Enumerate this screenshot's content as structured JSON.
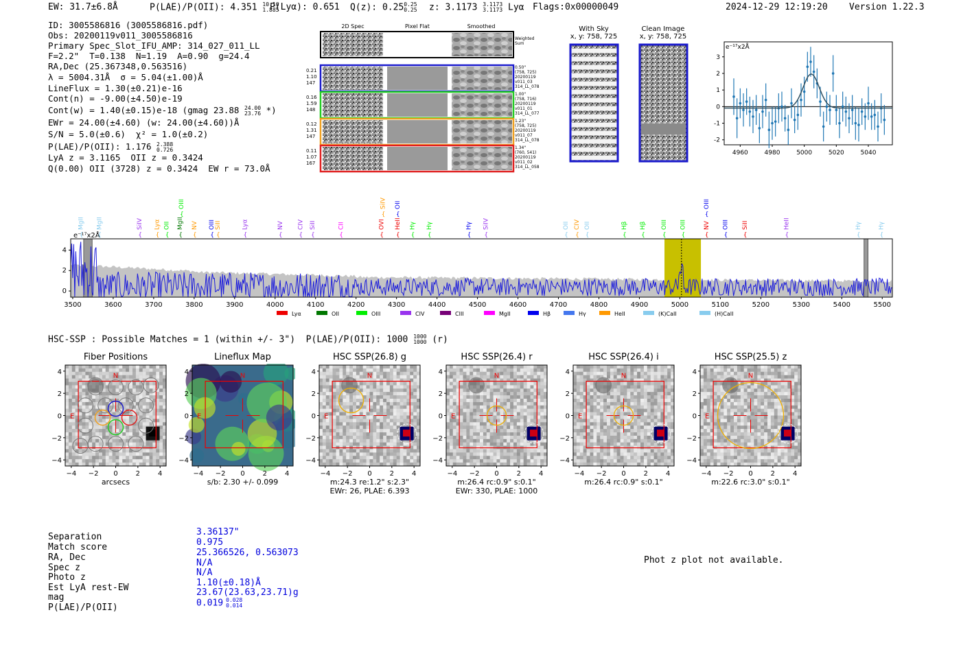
{
  "header": {
    "ew": "EW: 31.7±6.8Å",
    "plae_label": "P(LAE)/P(OII): 4.351",
    "plae_hi": "10.16",
    "plae_lo": "1.885",
    "plya": "P(Lyα): 0.651",
    "qz_label": "Q(z): 0.25",
    "qz_hi": "0.25",
    "qz_lo": "0.25",
    "z_label": "z: 3.1173",
    "z_hi": "3.1173",
    "z_lo": "3.1173",
    "z_suffix": "Lyα",
    "flags": "Flags:0x00000049",
    "timestamp": "2024-12-29 12:19:20",
    "version": "Version 1.22.3"
  },
  "info": {
    "id": "ID: 3005586816 (3005586816.pdf)",
    "obs": "Obs: 20200119v011_3005586816",
    "primary": "Primary Spec_Slot_IFU_AMP: 314_027_011_LL",
    "fit": "F=2.2\"  T=0.138  N=1.19  A=0.90  g=24.4",
    "radec": "RA,Dec (25.367348,0.563516)",
    "lambda": "λ = 5004.31Å  σ = 5.04(±1.00)Å",
    "lineflux": "LineFlux = 1.30(±0.21)e-16",
    "contn": "Cont(n) = -9.00(±4.50)e-19",
    "contw": "Cont(w) = 1.40(±0.15)e-18 (gmag 23.88",
    "contw_hi": "24.00",
    "contw_lo": "23.76",
    "contw_tail": "*)",
    "ewr": "EWr = 24.00(±4.60) (w: 24.00(±4.60))Å",
    "sn": "S/N = 5.0(±0.6)  χ² = 1.0(±0.2)",
    "plae2": "P(LAE)/P(OII): 1.176",
    "plae2_hi": "2.388",
    "plae2_lo": "0.726",
    "lya_z": "LyA z = 3.1165  OII z = 0.3424",
    "q_line": "Q(0.00) OII (3728) z = 0.3424  EW r = 73.0Å"
  },
  "stamps": {
    "col_labels": [
      "2D Spec",
      "Pixel Flat",
      "Smoothed"
    ],
    "weighted_sum": "Weighted\nSum",
    "rows": [
      {
        "left": [
          "0.21",
          "1.10",
          "147"
        ],
        "right": "0.50\"\n(758, 725)\n20200119\nv011_03\n314_LL_078",
        "color": "#1a1acc"
      },
      {
        "left": [
          "0.16",
          "1.59",
          "148"
        ],
        "right": "1.00\"\n(758, 716)\n20200119\nv011_01\n314_LL_077",
        "color": "#22cc22"
      },
      {
        "left": [
          "0.12",
          "1.31",
          "147"
        ],
        "right": "1.23\"\n(758, 725)\n20200119\nv011_07\n314_LL_078",
        "color": "#f0a020"
      },
      {
        "left": [
          "0.11",
          "1.07",
          "167"
        ],
        "right": "1.34\"\n(760, 541)\n20200119\nv011_02\n314_LL_058",
        "color": "#e02020"
      }
    ]
  },
  "ccd": {
    "with_sky_title": "With Sky",
    "with_sky_xy": "x, y: 758, 725",
    "clean_title": "Clean Image",
    "clean_xy": "x, y: 758, 725"
  },
  "chart_data": [
    {
      "type": "line",
      "name": "line-fit-zoom",
      "units_label": "e⁻¹⁷x2Å",
      "xlim": [
        4950,
        5055
      ],
      "ylim": [
        -2.3,
        3.9
      ],
      "xticks": [
        4960,
        4980,
        5000,
        5020,
        5040
      ],
      "yticks": [
        3,
        2,
        1,
        0,
        -1,
        -2
      ],
      "points": [
        [
          4956,
          0.6,
          1.1
        ],
        [
          4958,
          -0.7,
          1.2
        ],
        [
          4960,
          0.2,
          0.9
        ],
        [
          4962,
          -0.2,
          1.0
        ],
        [
          4964,
          0.3,
          0.8
        ],
        [
          4966,
          -0.3,
          0.9
        ],
        [
          4968,
          -0.6,
          1.0
        ],
        [
          4970,
          -0.2,
          0.9
        ],
        [
          4972,
          -1.3,
          0.9
        ],
        [
          4974,
          -0.3,
          1.0
        ],
        [
          4976,
          0.4,
          1.0
        ],
        [
          4978,
          -1.4,
          1.1
        ],
        [
          4980,
          -1.0,
          1.0
        ],
        [
          4982,
          -0.9,
          0.9
        ],
        [
          4984,
          -0.1,
          0.9
        ],
        [
          4986,
          0.0,
          0.9
        ],
        [
          4988,
          -0.7,
          0.8
        ],
        [
          4990,
          -1.4,
          0.9
        ],
        [
          4992,
          0.2,
          0.9
        ],
        [
          4994,
          -0.8,
          0.8
        ],
        [
          4996,
          -0.5,
          0.9
        ],
        [
          4998,
          0.4,
          1.0
        ],
        [
          5000,
          0.9,
          0.9
        ],
        [
          5002,
          2.4,
          0.9
        ],
        [
          5004,
          2.7,
          0.9
        ],
        [
          5006,
          2.1,
          1.0
        ],
        [
          5008,
          1.4,
          0.9
        ],
        [
          5010,
          0.3,
          0.9
        ],
        [
          5012,
          -1.2,
          0.9
        ],
        [
          5014,
          0.0,
          0.9
        ],
        [
          5016,
          -0.2,
          0.9
        ],
        [
          5018,
          2.0,
          1.1
        ],
        [
          5020,
          -0.2,
          0.9
        ],
        [
          5022,
          -1.0,
          0.9
        ],
        [
          5024,
          0.0,
          0.9
        ],
        [
          5026,
          -0.3,
          0.9
        ],
        [
          5028,
          -0.7,
          0.9
        ],
        [
          5030,
          -0.2,
          0.9
        ],
        [
          5032,
          -1.0,
          1.0
        ],
        [
          5034,
          -1.1,
          1.0
        ],
        [
          5036,
          -0.3,
          0.8
        ],
        [
          5038,
          -0.6,
          0.8
        ],
        [
          5040,
          0.2,
          1.0
        ],
        [
          5042,
          -0.6,
          0.8
        ],
        [
          5044,
          -0.5,
          0.9
        ],
        [
          5046,
          -1.2,
          0.9
        ],
        [
          5048,
          -0.1,
          0.9
        ],
        [
          5050,
          -0.8,
          0.9
        ]
      ],
      "fit": {
        "center": 5004.31,
        "sigma": 5.04,
        "amp": 2.05,
        "baseline": -0.09
      }
    },
    {
      "type": "line",
      "name": "full-spectrum",
      "units_label": "e⁻¹⁷x2Å",
      "xlim": [
        3495,
        5525
      ],
      "ylim": [
        -0.6,
        5.1
      ],
      "xticks": [
        3500,
        3600,
        3700,
        3800,
        3900,
        4000,
        4100,
        4200,
        4300,
        4400,
        4500,
        4600,
        4700,
        4800,
        4900,
        5000,
        5100,
        5200,
        5300,
        5400,
        5500
      ],
      "yticks": [
        4,
        2,
        0
      ],
      "highlight_band": [
        4962,
        5052
      ],
      "dashed_line": 5004,
      "hatched_bands": [
        [
          3527,
          3548
        ],
        [
          5455,
          5465
        ]
      ],
      "legend": [
        {
          "label": "Lyα",
          "color": "#ee0000"
        },
        {
          "label": "OII",
          "color": "#007700"
        },
        {
          "label": "OIII",
          "color": "#00ee00"
        },
        {
          "label": "CIV",
          "color": "#9933ee"
        },
        {
          "label": "CIII",
          "color": "#770077"
        },
        {
          "label": "MgII",
          "color": "#ff00ff"
        },
        {
          "label": "Hβ",
          "color": "#0000ee"
        },
        {
          "label": "Hγ",
          "color": "#4477ee"
        },
        {
          "label": "HeII",
          "color": "#ff9900"
        },
        {
          "label": "(K)CaII",
          "color": "#88ccee"
        },
        {
          "label": "(H)CaII",
          "color": "#88ccee"
        }
      ],
      "line_markers": [
        {
          "label": "MgII",
          "wave": 3520,
          "color": "#88ccee",
          "row": 0
        },
        {
          "label": "MgII",
          "wave": 3565,
          "color": "#88ccee",
          "row": 0
        },
        {
          "label": "SiIV",
          "wave": 3665,
          "color": "#9933ee",
          "row": 0
        },
        {
          "label": "Lyα",
          "wave": 3708,
          "color": "#ff9900",
          "row": 0
        },
        {
          "label": "OII",
          "wave": 3732,
          "color": "#00ee00",
          "row": 0
        },
        {
          "label": "MgII",
          "wave": 3765,
          "color": "#007700",
          "row": 0
        },
        {
          "label": "OIII",
          "wave": 3768,
          "color": "#00ee00",
          "row": 1
        },
        {
          "label": "NV",
          "wave": 3800,
          "color": "#ff9900",
          "row": 0
        },
        {
          "label": "OIII",
          "wave": 3843,
          "color": "#0000ee",
          "row": 0
        },
        {
          "label": "SiII",
          "wave": 3858,
          "color": "#ff9900",
          "row": 0
        },
        {
          "label": "Lyα",
          "wave": 3925,
          "color": "#9933ee",
          "row": 0
        },
        {
          "label": "NV",
          "wave": 4012,
          "color": "#9933ee",
          "row": 0
        },
        {
          "label": "CIV",
          "wave": 4062,
          "color": "#9933ee",
          "row": 0
        },
        {
          "label": "SiII",
          "wave": 4092,
          "color": "#9933ee",
          "row": 0
        },
        {
          "label": "CII",
          "wave": 4162,
          "color": "#ff00ff",
          "row": 0
        },
        {
          "label": "OVI",
          "wave": 4262,
          "color": "#ee0000",
          "row": 0
        },
        {
          "label": "SiIV",
          "wave": 4266,
          "color": "#ff9900",
          "row": 1
        },
        {
          "label": "OII",
          "wave": 4302,
          "color": "#0000ee",
          "row": 1
        },
        {
          "label": "HeII",
          "wave": 4302,
          "color": "#ee0000",
          "row": 0
        },
        {
          "label": "Hγ",
          "wave": 4339,
          "color": "#00ee00",
          "row": 0
        },
        {
          "label": "Hγ",
          "wave": 4380,
          "color": "#00ee00",
          "row": 0
        },
        {
          "label": "Hγ",
          "wave": 4478,
          "color": "#0000ee",
          "row": 0
        },
        {
          "label": "SiIV",
          "wave": 4520,
          "color": "#9933ee",
          "row": 0
        },
        {
          "label": "OII",
          "wave": 4718,
          "color": "#88ccee",
          "row": 0
        },
        {
          "label": "CIV",
          "wave": 4745,
          "color": "#ff9900",
          "row": 0
        },
        {
          "label": "OII",
          "wave": 4770,
          "color": "#88ccee",
          "row": 0
        },
        {
          "label": "Hβ",
          "wave": 4862,
          "color": "#00ee00",
          "row": 0
        },
        {
          "label": "Hβ",
          "wave": 4908,
          "color": "#00ee00",
          "row": 0
        },
        {
          "label": "OIII",
          "wave": 4960,
          "color": "#00ee00",
          "row": 0
        },
        {
          "label": "OIII",
          "wave": 5007,
          "color": "#00ee00",
          "row": 0
        },
        {
          "label": "NV",
          "wave": 5065,
          "color": "#ee0000",
          "row": 0
        },
        {
          "label": "OIII",
          "wave": 5065,
          "color": "#0000ee",
          "row": 1
        },
        {
          "label": "OIII",
          "wave": 5112,
          "color": "#0000ee",
          "row": 0
        },
        {
          "label": "SiII",
          "wave": 5160,
          "color": "#ee0000",
          "row": 0
        },
        {
          "label": "HeII",
          "wave": 5263,
          "color": "#9933ee",
          "row": 0
        },
        {
          "label": "Hγ",
          "wave": 5440,
          "color": "#88ccee",
          "row": 0
        },
        {
          "label": "Hγ",
          "wave": 5497,
          "color": "#88ccee",
          "row": 0
        }
      ]
    }
  ],
  "hsc": {
    "summary": "HSC-SSP : Possible Matches = 1 (within +/- 3\")  P(LAE)/P(OII): 1000",
    "summary_hi": "1000",
    "summary_lo": "1000",
    "summary_tail": "(r)",
    "axis_ticks": [
      "4",
      "2",
      "0",
      "−2",
      "−4"
    ],
    "xaxis_ticks": [
      "−4",
      "−2",
      "0",
      "2",
      "4"
    ],
    "panels": [
      {
        "title": "Fiber Positions",
        "caption1": "arcsecs",
        "caption2": ""
      },
      {
        "title": "Lineflux Map",
        "caption1": "s/b: 2.30 +/- 0.099",
        "caption2": ""
      },
      {
        "title": "HSC SSP(26.8) g",
        "caption1": "m:24.3  re:1.2\"  s:2.3\"",
        "caption2": "EWr: 26, PLAE: 6.393"
      },
      {
        "title": "HSC SSP(26.4) r",
        "caption1": "m:26.4 rc:0.9\"  s:0.1\"",
        "caption2": "EWr: 330, PLAE: 1000"
      },
      {
        "title": "HSC SSP(26.4) i",
        "caption1": "m:26.4 rc:0.9\"  s:0.1\"",
        "caption2": ""
      },
      {
        "title": "HSC SSP(25.5) z",
        "caption1": "m:22.6 rc:3.0\"  s:0.1\"",
        "caption2": ""
      }
    ],
    "compass_n": "N",
    "compass_e": "E"
  },
  "match": {
    "labels": [
      "Separation",
      "Match score",
      "RA, Dec",
      "Spec z",
      "Photo z",
      "Est LyA rest-EW",
      "mag",
      "P(LAE)/P(OII)"
    ],
    "values": [
      "3.36137\"",
      "0.975",
      "25.366526, 0.563073",
      "N/A",
      "N/A",
      "1.10(±0.18)Å",
      "23.67(23.63,23.71)g",
      "0.019"
    ],
    "plae_hi": "0.028",
    "plae_lo": "0.014",
    "photz_note": "Phot z plot not available."
  }
}
